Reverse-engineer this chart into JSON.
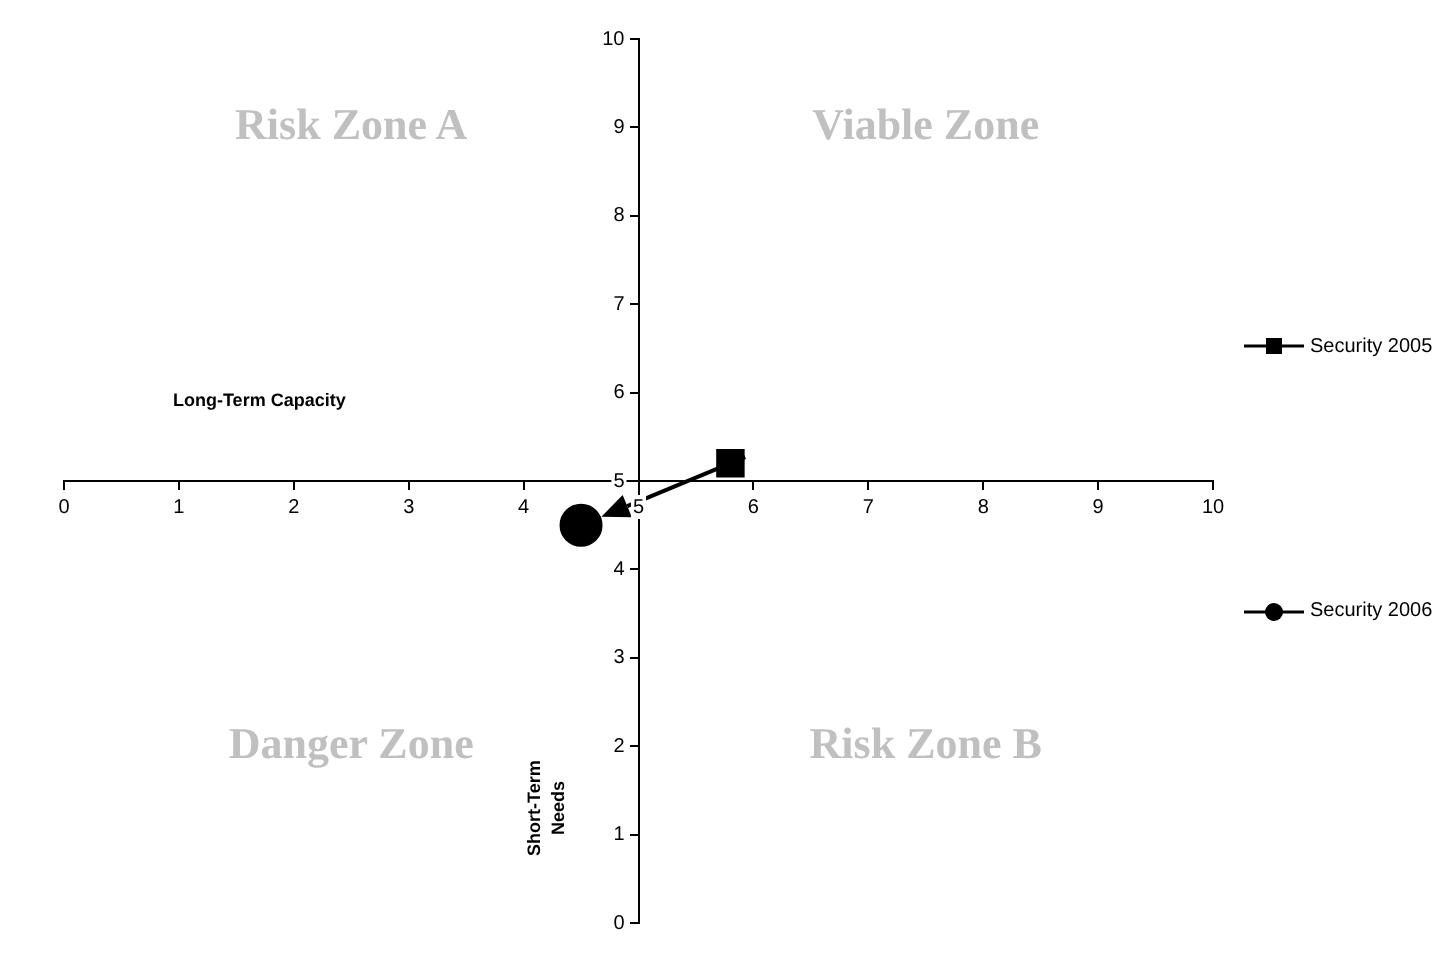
{
  "chart_data": {
    "type": "scatter",
    "xlabel": "Long-Term Capacity",
    "ylabel": "Short-Term Needs",
    "xlim": [
      0,
      10
    ],
    "xticks": [
      0,
      1,
      2,
      3,
      4,
      5,
      6,
      7,
      8,
      9,
      10
    ],
    "ylim": [
      0,
      10
    ],
    "yticks": [
      0,
      1,
      2,
      3,
      4,
      5,
      6,
      7,
      8,
      9,
      10
    ],
    "grid": false,
    "legend": "right",
    "series": [
      {
        "name": "Security 2005",
        "color": "#000000",
        "marker": "square",
        "x": [
          5.8
        ],
        "values": [
          5.2
        ]
      },
      {
        "name": "Security 2006",
        "color": "#000000",
        "marker": "circle",
        "x": [
          4.5
        ],
        "values": [
          4.5
        ]
      }
    ],
    "annotations": [
      "Risk Zone A",
      "Viable Zone",
      "Danger Zone",
      "Risk Zone B"
    ]
  }
}
